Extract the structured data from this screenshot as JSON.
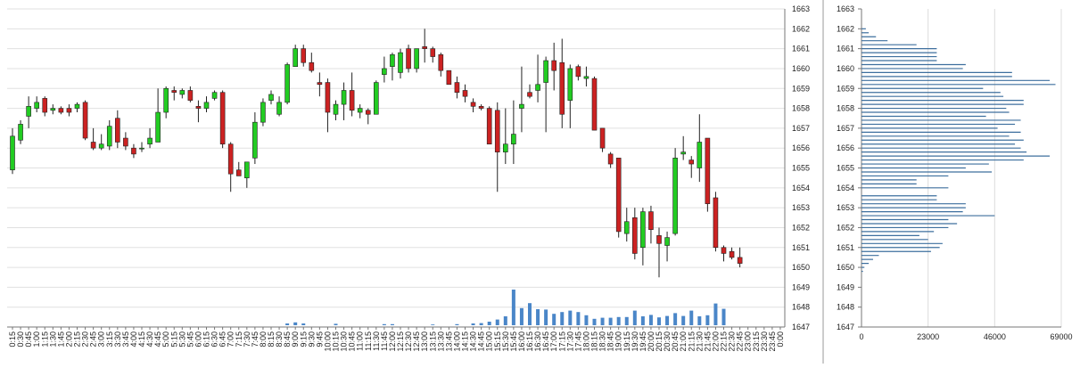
{
  "chart_data": [
    {
      "type": "candlestick",
      "title": "",
      "ylim": [
        1647,
        1663
      ],
      "y_ticks": [
        "1663",
        "1662",
        "1661",
        "1660",
        "1659",
        "1658",
        "1657",
        "1656",
        "1655",
        "1654",
        "1653",
        "1652",
        "1651",
        "1650",
        "1649",
        "1648",
        "1647"
      ],
      "x_ticks": [
        "0:15",
        "0:30",
        "0:45",
        "1:00",
        "1:15",
        "1:30",
        "1:45",
        "2:00",
        "2:15",
        "2:30",
        "2:45",
        "3:00",
        "3:15",
        "3:30",
        "3:45",
        "4:00",
        "4:15",
        "4:30",
        "4:45",
        "5:00",
        "5:15",
        "5:30",
        "5:45",
        "6:00",
        "6:15",
        "6:30",
        "6:45",
        "7:00",
        "7:15",
        "7:30",
        "7:45",
        "8:00",
        "8:15",
        "8:30",
        "8:45",
        "9:00",
        "9:15",
        "9:30",
        "9:45",
        "10:00",
        "10:15",
        "10:30",
        "10:45",
        "11:00",
        "11:15",
        "11:30",
        "11:45",
        "12:00",
        "12:15",
        "12:30",
        "12:45",
        "13:00",
        "13:15",
        "13:30",
        "13:45",
        "14:00",
        "14:15",
        "14:30",
        "14:45",
        "15:00",
        "15:15",
        "15:30",
        "15:45",
        "16:00",
        "16:15",
        "16:30",
        "16:45",
        "17:00",
        "17:15",
        "17:30",
        "17:45",
        "18:00",
        "18:15",
        "18:30",
        "18:45",
        "19:00",
        "19:15",
        "19:30",
        "19:45",
        "20:00",
        "20:15",
        "20:30",
        "20:45",
        "21:00",
        "21:15",
        "21:30",
        "21:45",
        "22:00",
        "22:15",
        "22:30",
        "22:45",
        "23:00",
        "23:15",
        "23:30",
        "23:45",
        "0:00"
      ],
      "up_color": "#22cc22",
      "down_color": "#cc2222",
      "volume_color": "#4a86c8",
      "candles": [
        {
          "o": 1654.9,
          "h": 1657.0,
          "l": 1654.7,
          "c": 1656.6
        },
        {
          "o": 1656.4,
          "h": 1657.4,
          "l": 1656.2,
          "c": 1657.2
        },
        {
          "o": 1657.6,
          "h": 1658.6,
          "l": 1657.0,
          "c": 1658.1
        },
        {
          "o": 1658.0,
          "h": 1658.6,
          "l": 1657.8,
          "c": 1658.3
        },
        {
          "o": 1658.5,
          "h": 1658.6,
          "l": 1657.6,
          "c": 1657.8
        },
        {
          "o": 1657.9,
          "h": 1658.2,
          "l": 1657.7,
          "c": 1658.0
        },
        {
          "o": 1658.0,
          "h": 1658.1,
          "l": 1657.7,
          "c": 1657.8
        },
        {
          "o": 1658.0,
          "h": 1658.2,
          "l": 1657.6,
          "c": 1657.8
        },
        {
          "o": 1658.0,
          "h": 1658.3,
          "l": 1657.8,
          "c": 1658.2
        },
        {
          "o": 1658.3,
          "h": 1658.4,
          "l": 1656.4,
          "c": 1656.5
        },
        {
          "o": 1656.3,
          "h": 1657.0,
          "l": 1655.9,
          "c": 1656.0
        },
        {
          "o": 1656.0,
          "h": 1656.7,
          "l": 1655.9,
          "c": 1656.2
        },
        {
          "o": 1656.1,
          "h": 1657.4,
          "l": 1655.9,
          "c": 1657.1
        },
        {
          "o": 1657.5,
          "h": 1657.9,
          "l": 1656.0,
          "c": 1656.3
        },
        {
          "o": 1656.5,
          "h": 1656.8,
          "l": 1655.9,
          "c": 1656.1
        },
        {
          "o": 1656.0,
          "h": 1656.2,
          "l": 1655.5,
          "c": 1655.7
        },
        {
          "o": 1656.0,
          "h": 1656.3,
          "l": 1655.8,
          "c": 1656.0
        },
        {
          "o": 1656.2,
          "h": 1657.0,
          "l": 1656.0,
          "c": 1656.5
        },
        {
          "o": 1656.3,
          "h": 1659.0,
          "l": 1656.3,
          "c": 1657.8
        },
        {
          "o": 1657.8,
          "h": 1659.1,
          "l": 1657.5,
          "c": 1659.0
        },
        {
          "o": 1658.9,
          "h": 1659.1,
          "l": 1658.4,
          "c": 1658.8
        },
        {
          "o": 1658.7,
          "h": 1659.0,
          "l": 1658.5,
          "c": 1658.9
        },
        {
          "o": 1658.9,
          "h": 1659.1,
          "l": 1658.3,
          "c": 1658.4
        },
        {
          "o": 1658.1,
          "h": 1658.4,
          "l": 1657.3,
          "c": 1658.0
        },
        {
          "o": 1658.0,
          "h": 1658.6,
          "l": 1657.8,
          "c": 1658.3
        },
        {
          "o": 1658.5,
          "h": 1658.9,
          "l": 1658.4,
          "c": 1658.8
        },
        {
          "o": 1658.8,
          "h": 1658.9,
          "l": 1656.0,
          "c": 1656.2
        },
        {
          "o": 1656.2,
          "h": 1656.3,
          "l": 1653.8,
          "c": 1654.7
        },
        {
          "o": 1654.9,
          "h": 1655.3,
          "l": 1654.6,
          "c": 1654.6
        },
        {
          "o": 1654.5,
          "h": 1655.3,
          "l": 1654.0,
          "c": 1655.3
        },
        {
          "o": 1655.5,
          "h": 1657.8,
          "l": 1655.2,
          "c": 1657.3
        },
        {
          "o": 1657.3,
          "h": 1658.5,
          "l": 1657.1,
          "c": 1658.3
        },
        {
          "o": 1658.4,
          "h": 1658.9,
          "l": 1658.2,
          "c": 1658.7
        },
        {
          "o": 1657.7,
          "h": 1658.6,
          "l": 1657.6,
          "c": 1658.3
        },
        {
          "o": 1658.3,
          "h": 1660.3,
          "l": 1658.2,
          "c": 1660.2
        },
        {
          "o": 1660.1,
          "h": 1661.2,
          "l": 1660.1,
          "c": 1661.0
        },
        {
          "o": 1661.0,
          "h": 1661.2,
          "l": 1660.1,
          "c": 1660.3
        },
        {
          "o": 1660.3,
          "h": 1660.8,
          "l": 1659.8,
          "c": 1659.9
        },
        {
          "o": 1659.3,
          "h": 1659.8,
          "l": 1658.6,
          "c": 1659.2
        },
        {
          "o": 1659.3,
          "h": 1659.5,
          "l": 1656.8,
          "c": 1657.8
        },
        {
          "o": 1657.7,
          "h": 1658.4,
          "l": 1657.4,
          "c": 1658.2
        },
        {
          "o": 1658.2,
          "h": 1659.3,
          "l": 1657.4,
          "c": 1658.9
        },
        {
          "o": 1658.9,
          "h": 1659.8,
          "l": 1657.6,
          "c": 1657.9
        },
        {
          "o": 1657.8,
          "h": 1658.2,
          "l": 1657.5,
          "c": 1658.0
        },
        {
          "o": 1657.9,
          "h": 1658.0,
          "l": 1657.2,
          "c": 1657.7
        },
        {
          "o": 1657.7,
          "h": 1659.4,
          "l": 1657.7,
          "c": 1659.3
        },
        {
          "o": 1659.7,
          "h": 1660.6,
          "l": 1659.3,
          "c": 1660.0
        },
        {
          "o": 1660.1,
          "h": 1660.8,
          "l": 1659.4,
          "c": 1660.7
        },
        {
          "o": 1659.8,
          "h": 1661.0,
          "l": 1659.5,
          "c": 1660.8
        },
        {
          "o": 1661.0,
          "h": 1661.2,
          "l": 1659.8,
          "c": 1660.0
        },
        {
          "o": 1660.0,
          "h": 1661.0,
          "l": 1659.8,
          "c": 1661.0
        },
        {
          "o": 1661.1,
          "h": 1662.0,
          "l": 1660.3,
          "c": 1661.0
        },
        {
          "o": 1661.0,
          "h": 1661.1,
          "l": 1660.3,
          "c": 1660.6
        },
        {
          "o": 1660.7,
          "h": 1660.8,
          "l": 1659.6,
          "c": 1659.9
        },
        {
          "o": 1659.9,
          "h": 1659.9,
          "l": 1659.2,
          "c": 1659.2
        },
        {
          "o": 1659.3,
          "h": 1659.6,
          "l": 1658.5,
          "c": 1658.8
        },
        {
          "o": 1658.9,
          "h": 1659.2,
          "l": 1658.3,
          "c": 1658.6
        },
        {
          "o": 1658.3,
          "h": 1658.5,
          "l": 1657.8,
          "c": 1658.1
        },
        {
          "o": 1658.1,
          "h": 1658.2,
          "l": 1657.9,
          "c": 1658.0
        },
        {
          "o": 1658.0,
          "h": 1658.1,
          "l": 1656.2,
          "c": 1656.2
        },
        {
          "o": 1657.9,
          "h": 1658.3,
          "l": 1653.8,
          "c": 1655.8
        },
        {
          "o": 1655.8,
          "h": 1658.0,
          "l": 1655.2,
          "c": 1656.2
        },
        {
          "o": 1656.2,
          "h": 1658.4,
          "l": 1655.2,
          "c": 1656.7
        },
        {
          "o": 1658.0,
          "h": 1660.1,
          "l": 1656.8,
          "c": 1658.2
        },
        {
          "o": 1658.8,
          "h": 1659.2,
          "l": 1658.5,
          "c": 1658.6
        },
        {
          "o": 1658.9,
          "h": 1660.7,
          "l": 1658.3,
          "c": 1659.2
        },
        {
          "o": 1659.3,
          "h": 1660.6,
          "l": 1656.8,
          "c": 1660.4
        },
        {
          "o": 1660.4,
          "h": 1661.3,
          "l": 1658.9,
          "c": 1659.9
        },
        {
          "o": 1660.3,
          "h": 1661.5,
          "l": 1657.0,
          "c": 1657.7
        },
        {
          "o": 1658.4,
          "h": 1660.2,
          "l": 1657.0,
          "c": 1660.0
        },
        {
          "o": 1660.1,
          "h": 1660.2,
          "l": 1659.4,
          "c": 1659.6
        },
        {
          "o": 1659.5,
          "h": 1660.1,
          "l": 1659.1,
          "c": 1659.6
        },
        {
          "o": 1659.5,
          "h": 1659.6,
          "l": 1656.9,
          "c": 1656.9
        },
        {
          "o": 1657.0,
          "h": 1657.0,
          "l": 1655.8,
          "c": 1656.0
        },
        {
          "o": 1655.7,
          "h": 1655.8,
          "l": 1655.0,
          "c": 1655.2
        },
        {
          "o": 1655.5,
          "h": 1655.5,
          "l": 1651.5,
          "c": 1651.8
        },
        {
          "o": 1651.7,
          "h": 1653.0,
          "l": 1651.3,
          "c": 1652.3
        },
        {
          "o": 1652.5,
          "h": 1653.0,
          "l": 1650.4,
          "c": 1650.7
        },
        {
          "o": 1651.0,
          "h": 1653.0,
          "l": 1650.1,
          "c": 1652.8
        },
        {
          "o": 1652.8,
          "h": 1653.1,
          "l": 1651.2,
          "c": 1651.9
        },
        {
          "o": 1651.6,
          "h": 1652.0,
          "l": 1649.5,
          "c": 1651.2
        },
        {
          "o": 1651.1,
          "h": 1651.8,
          "l": 1650.3,
          "c": 1651.5
        },
        {
          "o": 1651.7,
          "h": 1656.0,
          "l": 1651.6,
          "c": 1655.5
        },
        {
          "o": 1655.7,
          "h": 1656.6,
          "l": 1655.4,
          "c": 1655.8
        },
        {
          "o": 1655.4,
          "h": 1655.6,
          "l": 1654.5,
          "c": 1655.2
        },
        {
          "o": 1655.0,
          "h": 1657.7,
          "l": 1654.3,
          "c": 1656.3
        },
        {
          "o": 1656.5,
          "h": 1656.5,
          "l": 1652.8,
          "c": 1653.2
        },
        {
          "o": 1653.5,
          "h": 1653.8,
          "l": 1650.8,
          "c": 1651.0
        },
        {
          "o": 1651.0,
          "h": 1651.1,
          "l": 1650.3,
          "c": 1650.7
        },
        {
          "o": 1650.8,
          "h": 1651.0,
          "l": 1650.4,
          "c": 1650.5
        },
        {
          "o": 1650.5,
          "h": 1651.0,
          "l": 1650.0,
          "c": 1650.2
        }
      ],
      "volume": [
        0,
        0,
        0,
        0,
        0,
        0,
        0,
        0,
        0,
        0,
        0,
        0,
        0,
        0,
        0,
        0,
        0,
        0,
        0,
        0,
        0,
        0,
        0,
        0,
        0,
        0,
        0,
        0,
        0,
        0,
        0,
        0,
        0,
        0,
        0.05,
        0.08,
        0.05,
        0,
        0,
        0,
        0.04,
        0,
        0,
        0,
        0,
        0,
        0.03,
        0.03,
        0,
        0,
        0,
        0,
        0.02,
        0,
        0,
        0.03,
        0,
        0.05,
        0.06,
        0.1,
        0.16,
        0.25,
        1.0,
        0.48,
        0.62,
        0.45,
        0.44,
        0.32,
        0.37,
        0.41,
        0.37,
        0.28,
        0.18,
        0.21,
        0.21,
        0.23,
        0.23,
        0.41,
        0.25,
        0.29,
        0.22,
        0.26,
        0.34,
        0.26,
        0.41,
        0.25,
        0.28,
        0.61,
        0.46,
        0,
        0,
        0,
        0,
        0,
        0
      ]
    },
    {
      "type": "bar",
      "orientation": "horizontal",
      "x_ticks": [
        "0",
        "23000",
        "46000",
        "69000"
      ],
      "xlim": [
        0,
        69000
      ],
      "ylim": [
        1647,
        1663
      ],
      "y_ticks": [
        "1663",
        "1662",
        "1661",
        "1660",
        "1659",
        "1658",
        "1657",
        "1656",
        "1655",
        "1654",
        "1653",
        "1652",
        "1651",
        "1650",
        "1649",
        "1648",
        "1647"
      ],
      "color": "#3d6f9e",
      "profile": [
        {
          "price": 1662.0,
          "value": 1500
        },
        {
          "price": 1661.8,
          "value": 2500
        },
        {
          "price": 1661.6,
          "value": 5000
        },
        {
          "price": 1661.4,
          "value": 9000
        },
        {
          "price": 1661.2,
          "value": 19000
        },
        {
          "price": 1661.0,
          "value": 26000
        },
        {
          "price": 1660.8,
          "value": 26000
        },
        {
          "price": 1660.6,
          "value": 26000
        },
        {
          "price": 1660.4,
          "value": 26000
        },
        {
          "price": 1660.2,
          "value": 36000
        },
        {
          "price": 1660.0,
          "value": 35000
        },
        {
          "price": 1659.8,
          "value": 52000
        },
        {
          "price": 1659.6,
          "value": 52000
        },
        {
          "price": 1659.4,
          "value": 65000
        },
        {
          "price": 1659.2,
          "value": 67000
        },
        {
          "price": 1659.0,
          "value": 42000
        },
        {
          "price": 1658.8,
          "value": 48000
        },
        {
          "price": 1658.6,
          "value": 49000
        },
        {
          "price": 1658.4,
          "value": 56000
        },
        {
          "price": 1658.2,
          "value": 56000
        },
        {
          "price": 1658.0,
          "value": 50000
        },
        {
          "price": 1657.8,
          "value": 51000
        },
        {
          "price": 1657.6,
          "value": 43000
        },
        {
          "price": 1657.4,
          "value": 55000
        },
        {
          "price": 1657.2,
          "value": 53000
        },
        {
          "price": 1657.0,
          "value": 47000
        },
        {
          "price": 1656.8,
          "value": 55000
        },
        {
          "price": 1656.6,
          "value": 51000
        },
        {
          "price": 1656.4,
          "value": 56000
        },
        {
          "price": 1656.2,
          "value": 53000
        },
        {
          "price": 1656.0,
          "value": 55000
        },
        {
          "price": 1655.8,
          "value": 57000
        },
        {
          "price": 1655.6,
          "value": 65000
        },
        {
          "price": 1655.4,
          "value": 56000
        },
        {
          "price": 1655.2,
          "value": 44000
        },
        {
          "price": 1655.0,
          "value": 36000
        },
        {
          "price": 1654.8,
          "value": 45000
        },
        {
          "price": 1654.6,
          "value": 30000
        },
        {
          "price": 1654.4,
          "value": 19000
        },
        {
          "price": 1654.2,
          "value": 19000
        },
        {
          "price": 1654.0,
          "value": 30000
        },
        {
          "price": 1653.6,
          "value": 26000
        },
        {
          "price": 1653.4,
          "value": 26000
        },
        {
          "price": 1653.2,
          "value": 36000
        },
        {
          "price": 1653.0,
          "value": 36000
        },
        {
          "price": 1652.8,
          "value": 35000
        },
        {
          "price": 1652.6,
          "value": 46000
        },
        {
          "price": 1652.4,
          "value": 30000
        },
        {
          "price": 1652.2,
          "value": 33000
        },
        {
          "price": 1652.0,
          "value": 30000
        },
        {
          "price": 1651.8,
          "value": 25000
        },
        {
          "price": 1651.6,
          "value": 20000
        },
        {
          "price": 1651.4,
          "value": 23000
        },
        {
          "price": 1651.2,
          "value": 28000
        },
        {
          "price": 1651.0,
          "value": 27000
        },
        {
          "price": 1650.8,
          "value": 24000
        },
        {
          "price": 1650.6,
          "value": 6000
        },
        {
          "price": 1650.4,
          "value": 4000
        },
        {
          "price": 1650.2,
          "value": 2500
        },
        {
          "price": 1650.0,
          "value": 1000
        },
        {
          "price": 1649.8,
          "value": 500
        }
      ]
    }
  ]
}
